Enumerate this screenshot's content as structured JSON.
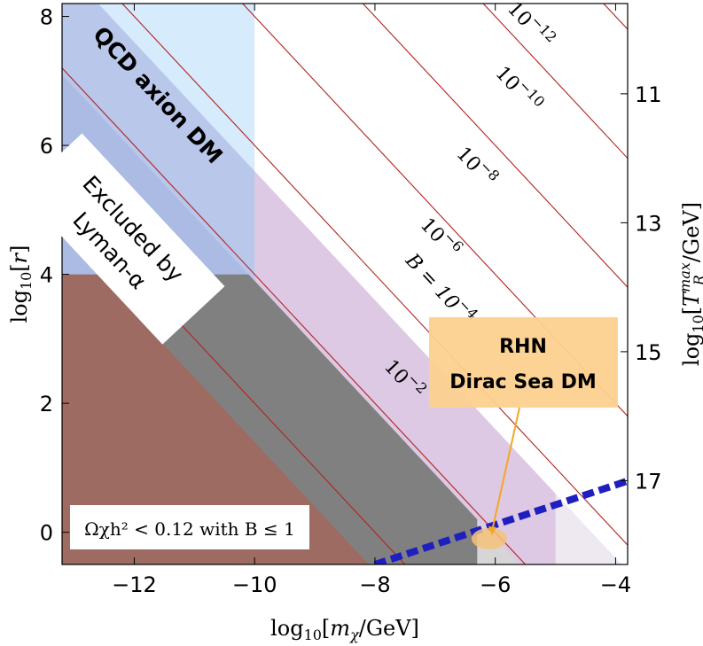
{
  "colors": {
    "axion": "#cfe8fb",
    "axion_over_grey": "#a9b8e2",
    "grey": "#808080",
    "brown": "#9e6b62",
    "lilac": "#ddc9e3",
    "lilac_faint": "#eee8f1",
    "light_grey": "#d6d6d6",
    "contour_line": "#b22222",
    "rhn_box": "#fcd18f",
    "rhn_marker": "#f5c27a",
    "rhn_pointer": "#f5a623",
    "blue_line": "#1f1fbf"
  },
  "chart_data": {
    "type": "area",
    "xlabel": "log10[mχ/GeV]",
    "ylabel_left": "log10[r]",
    "ylabel_right": "log10[T_R^max/GeV]",
    "xlim": [
      -13.2,
      -3.8
    ],
    "ylim": [
      -0.5,
      8.2
    ],
    "x_ticks": [
      -12,
      -10,
      -8,
      -6,
      -4
    ],
    "x_tick_labels": [
      "−12",
      "−10",
      "−8",
      "−6",
      "−4"
    ],
    "y_ticks": [
      0,
      2,
      4,
      6,
      8
    ],
    "y_tick_labels": [
      "0",
      "2",
      "4",
      "6",
      "8"
    ],
    "right_ticks": [
      {
        "label": "11",
        "y": 6.8
      },
      {
        "label": "13",
        "y": 4.8
      },
      {
        "label": "15",
        "y": 2.8
      },
      {
        "label": "17",
        "y": 0.8
      }
    ],
    "contour_slope": -1,
    "contour_intercepts": [
      -8,
      -6,
      -4,
      -2,
      0,
      2,
      4,
      6,
      8
    ],
    "contour_labels": [
      {
        "text": "10−2",
        "x": -7.6,
        "y": 2.3
      },
      {
        "text": "B = 10−4",
        "x": -7.0,
        "y": 3.7
      },
      {
        "text": "10−6",
        "x": -7.0,
        "y": 4.5
      },
      {
        "text": "10−8",
        "x": -6.4,
        "y": 5.6
      },
      {
        "text": "10−10",
        "x": -5.7,
        "y": 6.8
      },
      {
        "text": "10−12",
        "x": -5.5,
        "y": 7.8
      }
    ],
    "regions": {
      "brown_boundary_intercept": -8.6,
      "grey_boundary_intercept": -6.1,
      "lilac_boundary_intercept": -4.4,
      "grey_cut_x": -6.3,
      "lilac_faint_cut_x": -5.0,
      "axion_x_max": -10,
      "axion_y_min": 4.0
    },
    "dirac_sea_line": {
      "points": [
        [
          -8.0,
          -0.5
        ],
        [
          -3.8,
          0.8
        ]
      ],
      "style": "dashed"
    },
    "rhn_marker_point": [
      -6.1,
      -0.1
    ],
    "labels": {
      "qcd_axion": "QCD axion DM",
      "lyman_line1": "Excluded by",
      "lyman_line2": "Lyman-α",
      "rhn_line1": "RHN",
      "rhn_line2": "Dirac Sea DM",
      "omega": "Ωχh² < 0.12 with B ≤ 1"
    }
  }
}
